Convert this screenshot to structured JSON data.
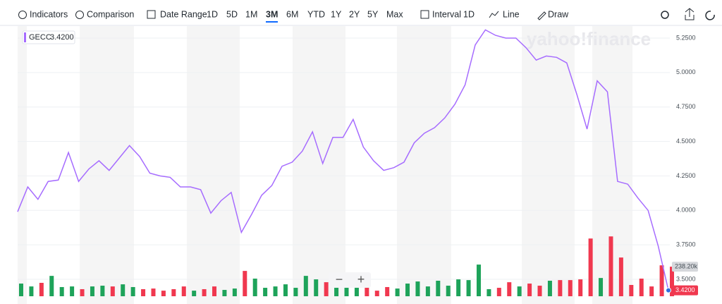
{
  "toolbar": {
    "indicators": "Indicators",
    "comparison": "Comparison",
    "date_range": "Date Range",
    "ranges": [
      "1D",
      "5D",
      "1M",
      "3M",
      "6M",
      "YTD",
      "1Y",
      "2Y",
      "5Y",
      "Max"
    ],
    "active_range": 3,
    "interval_label": "Interval",
    "interval": "1D",
    "chart_style": "Line",
    "draw": "Draw"
  },
  "watermark": "yahoo!finance",
  "chart_data": {
    "type": "line",
    "series": [
      {
        "name": "GECC",
        "color": "#a66cff",
        "values": [
          3.99,
          4.17,
          4.08,
          4.21,
          4.22,
          4.42,
          4.21,
          4.3,
          4.36,
          4.29,
          4.38,
          4.47,
          4.39,
          4.27,
          4.25,
          4.24,
          4.17,
          4.17,
          4.15,
          3.98,
          4.07,
          4.13,
          3.84,
          3.97,
          4.11,
          4.18,
          4.32,
          4.35,
          4.43,
          4.57,
          4.34,
          4.53,
          4.53,
          4.66,
          4.46,
          4.36,
          4.29,
          4.31,
          4.35,
          4.49,
          4.56,
          4.6,
          4.67,
          4.77,
          4.91,
          5.2,
          5.31,
          5.27,
          5.25,
          5.25,
          5.18,
          5.09,
          5.12,
          5.11,
          5.07,
          4.84,
          4.59,
          4.94,
          4.86,
          4.21,
          4.19,
          4.09,
          4.0,
          3.74,
          3.42
        ],
        "last_label": "3.4200"
      }
    ],
    "volume": {
      "up_color": "#1ea35a",
      "down_color": "#f0384f",
      "values": [
        102000,
        79000,
        108000,
        164000,
        74000,
        79000,
        57000,
        79000,
        85000,
        79000,
        96000,
        74000,
        57000,
        62000,
        45000,
        57000,
        79000,
        45000,
        57000,
        79000,
        51000,
        62000,
        204000,
        142000,
        68000,
        79000,
        96000,
        68000,
        164000,
        136000,
        113000,
        136000,
        79000,
        74000,
        136000,
        45000,
        74000,
        62000,
        102000,
        119000,
        79000,
        125000,
        85000,
        136000,
        130000,
        255000,
        57000,
        68000,
        113000,
        79000,
        102000,
        85000,
        125000,
        130000,
        130000,
        136000,
        465000,
        147000,
        482000,
        312000,
        91000,
        142000,
        79000,
        249000,
        238200
      ],
      "last_label": "238.20k",
      "ylim": [
        0,
        1500000
      ]
    },
    "ylim": [
      3.377,
      5.342
    ],
    "yticks": [
      {
        "value": 3.5,
        "label": "3.5000"
      },
      {
        "value": 3.75,
        "label": "3.7500"
      },
      {
        "value": 4.0,
        "label": "4.0000"
      },
      {
        "value": 4.25,
        "label": "4.2500"
      },
      {
        "value": 4.5,
        "label": "4.5000"
      },
      {
        "value": 4.75,
        "label": "4.7500"
      },
      {
        "value": 5.0,
        "label": "5.0000"
      },
      {
        "value": 5.25,
        "label": "5.2500"
      }
    ],
    "grid": true
  }
}
